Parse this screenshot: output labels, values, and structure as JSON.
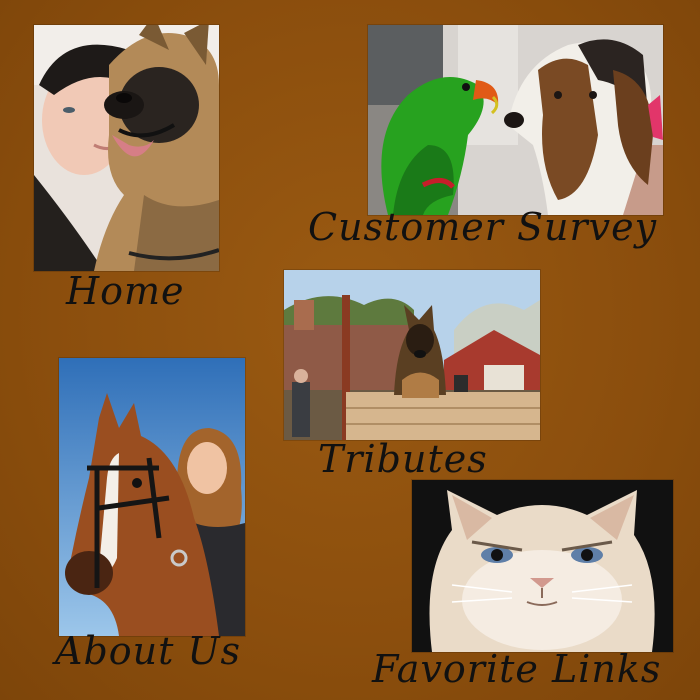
{
  "nav": {
    "home": {
      "label": "Home",
      "image": "woman-with-german-shepherd"
    },
    "customer_survey": {
      "label": "Customer Survey",
      "image": "parrot-and-basset-hound"
    },
    "tributes": {
      "label": "Tributes",
      "image": "german-shepherd-over-fence"
    },
    "about_us": {
      "label": "About Us",
      "image": "girl-with-horse"
    },
    "favorite_links": {
      "label": "Favorite Links",
      "image": "grumpy-persian-cat"
    }
  },
  "colors": {
    "background": "#8b4e0d",
    "label_text": "#111111"
  }
}
